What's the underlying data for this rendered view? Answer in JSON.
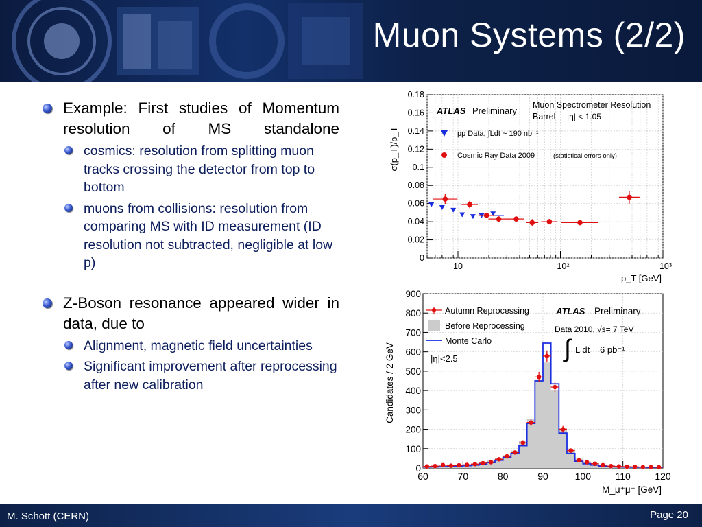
{
  "slide": {
    "title": "Muon Systems (2/2)",
    "footer_author": "M. Schott (CERN)",
    "footer_page": "Page 20"
  },
  "content": {
    "b1": "Example: First studies of Momentum resolution of MS standalone",
    "b1_sub1": "cosmics: resolution from splitting muon tracks crossing the detector from top to bottom",
    "b1_sub2": "muons from collisions: resolution from comparing MS with ID measurement (ID resolution not subtracted, negligible at low p)",
    "b2": "Z-Boson resonance appeared wider in data, due to",
    "b2_sub1": "Alignment, magnetic field uncertainties",
    "b2_sub2": "Significant improvement after reprocessing after new calibration"
  },
  "colors": {
    "pp_data": "#1a2ee0",
    "cosmic": "#e01010",
    "monte_carlo": "#1a2ee0",
    "before_fill": "#cccccc"
  },
  "chart_data": [
    {
      "type": "scatter",
      "title": "Muon Spectrometer Resolution",
      "subtitle": "Barrel",
      "eta_label": "|η| < 1.05",
      "experiment": "ATLAS",
      "status": "Preliminary",
      "xlabel": "p_T [GeV]",
      "ylabel": "σ(p_T)/p_T",
      "xscale": "log",
      "xlim": [
        5,
        1000
      ],
      "ylim": [
        0,
        0.18
      ],
      "yticks": [
        "0",
        "0.02",
        "0.04",
        "0.06",
        "0.08",
        "0.1",
        "0.12",
        "0.14",
        "0.16",
        "0.18"
      ],
      "xticks": [
        "10",
        "10²",
        "10³"
      ],
      "grid": true,
      "legend_position": "top-left",
      "lumi_label": "pp Data, ∫Ldt ~ 190 nb⁻¹",
      "note": "(statistical errors only)",
      "series": [
        {
          "name": "pp Data",
          "marker": "triangle-down",
          "x": [
            5.5,
            7,
            9,
            11,
            14,
            17,
            22
          ],
          "y": [
            0.059,
            0.056,
            0.053,
            0.048,
            0.046,
            0.047,
            0.049
          ]
        },
        {
          "name": "Cosmic Ray Data 2009",
          "marker": "circle",
          "x": [
            7.5,
            13,
            19,
            25,
            37,
            53,
            78,
            155,
            470
          ],
          "y": [
            0.065,
            0.059,
            0.047,
            0.043,
            0.043,
            0.039,
            0.04,
            0.039,
            0.067
          ],
          "xerr_log": [
            0.12,
            0.08,
            0.08,
            0.1,
            0.08,
            0.06,
            0.08,
            0.18,
            0.1
          ],
          "yerr": [
            0.006,
            0.004,
            0.003,
            0.003,
            0.003,
            0.004,
            0.003,
            0.003,
            0.007
          ]
        }
      ]
    },
    {
      "type": "line",
      "experiment": "ATLAS",
      "status": "Preliminary",
      "data_label": "Data 2010, √s= 7 TeV",
      "lumi_label": "L dt = 6 pb⁻¹",
      "eta_label": "|η|<2.5",
      "xlabel": "M_μ⁺μ⁻ [GeV]",
      "ylabel": "Candidates / 2 GeV",
      "xlim": [
        60,
        120
      ],
      "ylim": [
        0,
        900
      ],
      "xticks": [
        "60",
        "70",
        "80",
        "90",
        "100",
        "110",
        "120"
      ],
      "yticks": [
        "0",
        "100",
        "200",
        "300",
        "400",
        "500",
        "600",
        "700",
        "800",
        "900"
      ],
      "bin_width": 2,
      "grid": true,
      "legend_position": "top-left",
      "x": [
        61,
        63,
        65,
        67,
        69,
        71,
        73,
        75,
        77,
        79,
        81,
        83,
        85,
        87,
        89,
        91,
        93,
        95,
        97,
        99,
        101,
        103,
        105,
        107,
        109,
        111,
        113,
        115,
        117,
        119
      ],
      "series": [
        {
          "name": "Autumn Reprocessing",
          "style": "points",
          "values": [
            8,
            10,
            15,
            12,
            14,
            16,
            20,
            25,
            30,
            45,
            60,
            80,
            130,
            235,
            470,
            578,
            418,
            200,
            90,
            40,
            30,
            22,
            15,
            10,
            8,
            7,
            6,
            5,
            5,
            4
          ]
        },
        {
          "name": "Before Reprocessing",
          "style": "filled-histogram",
          "values": [
            10,
            12,
            14,
            16,
            18,
            20,
            24,
            30,
            38,
            50,
            66,
            90,
            140,
            255,
            455,
            545,
            400,
            205,
            95,
            48,
            32,
            24,
            17,
            12,
            10,
            8,
            7,
            6,
            5,
            5
          ]
        },
        {
          "name": "Monte Carlo",
          "style": "step-line",
          "values": [
            5,
            6,
            7,
            8,
            10,
            12,
            15,
            20,
            28,
            40,
            55,
            75,
            115,
            230,
            450,
            645,
            435,
            180,
            75,
            35,
            22,
            15,
            10,
            8,
            6,
            5,
            4,
            4,
            3,
            3
          ]
        }
      ]
    }
  ]
}
